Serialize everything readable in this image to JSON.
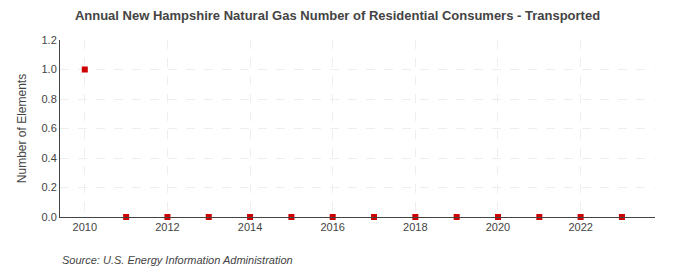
{
  "chart_data": {
    "type": "scatter",
    "title": "Annual New Hampshire Natural Gas Number of Residential Consumers - Transported",
    "ylabel": "Number of Elements",
    "annotations": [
      "Source: U.S. Energy Information Administration"
    ],
    "x": [
      2010,
      2011,
      2012,
      2013,
      2014,
      2015,
      2016,
      2017,
      2018,
      2019,
      2020,
      2021,
      2022,
      2023
    ],
    "values": [
      1,
      0,
      0,
      0,
      0,
      0,
      0,
      0,
      0,
      0,
      0,
      0,
      0,
      0
    ],
    "color": "#cc0000",
    "marker": "square",
    "xlim": [
      2009.4,
      2023.8
    ],
    "xticks": [
      2010,
      2012,
      2014,
      2016,
      2018,
      2020,
      2022
    ],
    "ylim": [
      0,
      1.2
    ],
    "yticks": [
      {
        "value": 0,
        "label": "0.0"
      },
      0.2,
      0.4,
      0.6,
      0.8,
      {
        "value": 1,
        "label": "1.0"
      },
      1.2
    ],
    "grid": true
  }
}
